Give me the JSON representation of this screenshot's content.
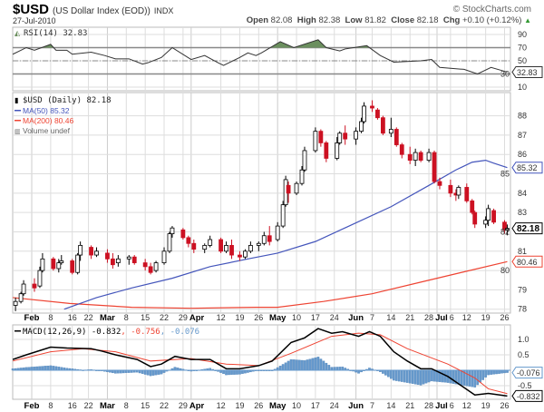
{
  "header": {
    "symbol": "$USD",
    "name": "(US Dollar Index (EOD))",
    "exchange": "INDX",
    "date": "27-Jul-2010",
    "brand": "© StockCharts.com",
    "open_label": "Open",
    "open": "82.08",
    "high_label": "High",
    "high": "82.38",
    "low_label": "Low",
    "low": "81.82",
    "close_label": "Close",
    "close": "82.18",
    "chg_label": "Chg",
    "chg": "+0.10 (+0.12%)"
  },
  "colors": {
    "up": "#000000",
    "down": "#cc1122",
    "ma50": "#4455bb",
    "ma200": "#ee4433",
    "macd": "#000000",
    "signal": "#ee4433",
    "histogram": "#6699cc",
    "rsi_fill": "#6b8f5e",
    "grid": "#dddddd"
  },
  "chart_data": [
    {
      "type": "line",
      "panel": "rsi",
      "legend": "RSI(14) 32.83",
      "last_label": "32.83",
      "ylim": [
        4.5,
        101
      ],
      "yticks": [
        10,
        30,
        50,
        70,
        90
      ],
      "reference_lines": [
        30,
        50,
        70
      ],
      "points": [
        [
          "2010-01-25",
          60
        ],
        [
          "2010-01-30",
          70
        ],
        [
          "2010-02-02",
          66
        ],
        [
          "2010-02-08",
          75
        ],
        [
          "2010-02-10",
          66
        ],
        [
          "2010-02-14",
          66
        ],
        [
          "2010-02-16",
          60
        ],
        [
          "2010-02-23",
          63
        ],
        [
          "2010-02-28",
          58
        ],
        [
          "2010-03-04",
          53
        ],
        [
          "2010-03-09",
          53
        ],
        [
          "2010-03-14",
          45
        ],
        [
          "2010-03-16",
          47
        ],
        [
          "2010-03-21",
          55
        ],
        [
          "2010-03-25",
          70
        ],
        [
          "2010-04-01",
          52
        ],
        [
          "2010-04-06",
          58
        ],
        [
          "2010-04-11",
          47
        ],
        [
          "2010-04-13",
          43
        ],
        [
          "2010-04-19",
          55
        ],
        [
          "2010-04-22",
          62
        ],
        [
          "2010-04-25",
          58
        ],
        [
          "2010-04-27",
          62
        ],
        [
          "2010-05-04",
          79
        ],
        [
          "2010-05-09",
          70
        ],
        [
          "2010-05-18",
          82
        ],
        [
          "2010-05-21",
          70
        ],
        [
          "2010-05-26",
          65
        ],
        [
          "2010-05-28",
          68
        ],
        [
          "2010-06-05",
          73
        ],
        [
          "2010-06-10",
          58
        ],
        [
          "2010-06-15",
          48
        ],
        [
          "2010-06-25",
          50
        ],
        [
          "2010-06-29",
          52
        ],
        [
          "2010-07-02",
          40
        ],
        [
          "2010-07-11",
          37
        ],
        [
          "2010-07-16",
          30
        ],
        [
          "2010-07-21",
          40
        ],
        [
          "2010-07-27",
          32.83
        ]
      ]
    },
    {
      "type": "candlestick",
      "panel": "price",
      "legend": {
        "main": "$USD (Daily) 82.18",
        "ma50": "MA(50) 85.32",
        "ma200": "MA(200) 80.46",
        "volume": "Volume undef"
      },
      "last_labels": {
        "close": "82.18",
        "ma50": "85.32",
        "ma200": "80.46"
      },
      "ylim": [
        77.8,
        89.2
      ],
      "yticks": [
        78,
        79,
        80,
        81,
        82,
        83,
        84,
        85,
        86,
        87,
        88
      ],
      "xlim": [
        "2010-01-25",
        "2010-07-28"
      ],
      "ohlc": [
        [
          "2010-01-26",
          78.2,
          78.6,
          77.9,
          78.4
        ],
        [
          "2010-01-28",
          78.4,
          78.9,
          78.3,
          78.8
        ],
        [
          "2010-01-29",
          78.8,
          79.5,
          78.7,
          79.3
        ],
        [
          "2010-02-02",
          79.3,
          79.6,
          78.9,
          79.1
        ],
        [
          "2010-02-04",
          79.2,
          80.2,
          79.1,
          80.0
        ],
        [
          "2010-02-05",
          80.0,
          80.9,
          79.9,
          80.6
        ],
        [
          "2010-02-09",
          80.6,
          80.7,
          80.0,
          80.1
        ],
        [
          "2010-02-11",
          80.1,
          80.6,
          79.9,
          80.4
        ],
        [
          "2010-02-12",
          80.4,
          80.8,
          80.3,
          80.5
        ],
        [
          "2010-02-16",
          80.5,
          80.6,
          79.8,
          79.9
        ],
        [
          "2010-02-18",
          79.9,
          80.9,
          79.8,
          80.8
        ],
        [
          "2010-02-19",
          80.8,
          81.5,
          80.5,
          81.3
        ],
        [
          "2010-02-23",
          81.2,
          81.3,
          80.6,
          80.8
        ],
        [
          "2010-02-25",
          80.8,
          81.2,
          80.7,
          81.0
        ],
        [
          "2010-03-01",
          80.9,
          81.1,
          80.4,
          80.6
        ],
        [
          "2010-03-03",
          80.6,
          80.9,
          80.1,
          80.3
        ],
        [
          "2010-03-05",
          80.4,
          80.8,
          80.2,
          80.6
        ],
        [
          "2010-03-09",
          80.6,
          80.8,
          80.3,
          80.7
        ],
        [
          "2010-03-11",
          80.7,
          80.8,
          80.3,
          80.4
        ],
        [
          "2010-03-15",
          80.4,
          80.6,
          80.0,
          80.2
        ],
        [
          "2010-03-17",
          80.2,
          80.4,
          79.8,
          79.9
        ],
        [
          "2010-03-19",
          80.0,
          80.5,
          79.9,
          80.4
        ],
        [
          "2010-03-22",
          80.4,
          81.2,
          80.3,
          81.0
        ],
        [
          "2010-03-24",
          81.0,
          82.0,
          80.9,
          81.9
        ],
        [
          "2010-03-25",
          81.9,
          82.3,
          81.7,
          82.2
        ],
        [
          "2010-03-29",
          82.1,
          82.2,
          81.6,
          81.7
        ],
        [
          "2010-03-31",
          81.7,
          81.8,
          81.2,
          81.4
        ],
        [
          "2010-04-02",
          81.4,
          81.6,
          80.9,
          81.1
        ],
        [
          "2010-04-06",
          81.1,
          81.4,
          80.9,
          81.3
        ],
        [
          "2010-04-08",
          81.3,
          81.8,
          81.2,
          81.6
        ],
        [
          "2010-04-12",
          81.6,
          81.7,
          80.9,
          81.0
        ],
        [
          "2010-04-14",
          81.0,
          81.5,
          80.9,
          81.3
        ],
        [
          "2010-04-16",
          81.3,
          81.6,
          80.6,
          80.8
        ],
        [
          "2010-04-19",
          80.8,
          81.0,
          80.5,
          80.7
        ],
        [
          "2010-04-21",
          80.7,
          81.1,
          80.6,
          81.0
        ],
        [
          "2010-04-23",
          81.0,
          81.5,
          80.9,
          81.3
        ],
        [
          "2010-04-26",
          81.3,
          81.5,
          81.0,
          81.4
        ],
        [
          "2010-04-28",
          81.4,
          82.0,
          81.3,
          81.8
        ],
        [
          "2010-04-30",
          81.8,
          82.3,
          81.3,
          81.5
        ],
        [
          "2010-05-03",
          81.6,
          82.5,
          81.5,
          82.3
        ],
        [
          "2010-05-05",
          82.3,
          83.6,
          82.2,
          83.4
        ],
        [
          "2010-05-06",
          83.4,
          84.9,
          83.3,
          84.7
        ],
        [
          "2010-05-07",
          84.4,
          84.6,
          83.5,
          84.0
        ],
        [
          "2010-05-10",
          84.0,
          84.6,
          83.9,
          84.5
        ],
        [
          "2010-05-12",
          84.5,
          85.4,
          84.4,
          85.2
        ],
        [
          "2010-05-13",
          85.2,
          86.4,
          85.1,
          86.2
        ],
        [
          "2010-05-17",
          86.2,
          87.4,
          86.1,
          87.2
        ],
        [
          "2010-05-19",
          87.2,
          87.3,
          86.4,
          86.6
        ],
        [
          "2010-05-21",
          86.6,
          86.7,
          85.6,
          85.8
        ],
        [
          "2010-05-25",
          85.8,
          86.9,
          85.7,
          86.6
        ],
        [
          "2010-05-26",
          86.6,
          87.2,
          86.5,
          87.1
        ],
        [
          "2010-05-28",
          87.1,
          87.5,
          86.5,
          86.8
        ],
        [
          "2010-06-01",
          86.8,
          87.4,
          86.5,
          87.2
        ],
        [
          "2010-06-03",
          87.2,
          87.9,
          87.1,
          87.7
        ],
        [
          "2010-06-04",
          87.7,
          88.7,
          87.6,
          88.5
        ],
        [
          "2010-06-07",
          88.5,
          88.8,
          88.2,
          88.4
        ],
        [
          "2010-06-09",
          88.3,
          88.4,
          87.8,
          87.9
        ],
        [
          "2010-06-11",
          87.9,
          88.0,
          87.0,
          87.1
        ],
        [
          "2010-06-14",
          87.1,
          87.9,
          86.9,
          87.3
        ],
        [
          "2010-06-16",
          87.3,
          87.4,
          86.4,
          86.5
        ],
        [
          "2010-06-18",
          86.5,
          86.6,
          85.8,
          86.0
        ],
        [
          "2010-06-21",
          86.0,
          86.4,
          85.5,
          85.7
        ],
        [
          "2010-06-23",
          85.7,
          86.3,
          85.4,
          86.1
        ],
        [
          "2010-06-25",
          86.1,
          86.2,
          85.6,
          85.7
        ],
        [
          "2010-06-28",
          85.7,
          86.3,
          85.6,
          86.1
        ],
        [
          "2010-06-30",
          86.1,
          86.2,
          84.5,
          84.6
        ],
        [
          "2010-07-02",
          84.6,
          84.8,
          84.2,
          84.4
        ],
        [
          "2010-07-06",
          84.4,
          84.7,
          83.8,
          84.0
        ],
        [
          "2010-07-08",
          84.0,
          84.2,
          83.6,
          83.9
        ],
        [
          "2010-07-09",
          83.9,
          84.4,
          83.7,
          84.3
        ],
        [
          "2010-07-12",
          84.3,
          84.5,
          83.5,
          83.6
        ],
        [
          "2010-07-14",
          83.6,
          83.7,
          82.9,
          83.0
        ],
        [
          "2010-07-15",
          83.0,
          83.1,
          82.2,
          82.4
        ],
        [
          "2010-07-19",
          82.4,
          82.8,
          82.2,
          82.6
        ],
        [
          "2010-07-20",
          82.6,
          83.4,
          82.3,
          83.2
        ],
        [
          "2010-07-22",
          83.1,
          83.2,
          82.4,
          82.5
        ],
        [
          "2010-07-26",
          82.5,
          82.6,
          81.9,
          82.1
        ],
        [
          "2010-07-27",
          82.08,
          82.38,
          81.82,
          82.18
        ]
      ],
      "ma50": [
        [
          "2010-02-13",
          78.0
        ],
        [
          "2010-02-25",
          78.6
        ],
        [
          "2010-03-10",
          79.1
        ],
        [
          "2010-03-25",
          79.6
        ],
        [
          "2010-04-08",
          80.2
        ],
        [
          "2010-04-22",
          80.6
        ],
        [
          "2010-05-03",
          80.9
        ],
        [
          "2010-05-17",
          81.5
        ],
        [
          "2010-05-31",
          82.4
        ],
        [
          "2010-06-14",
          83.3
        ],
        [
          "2010-06-28",
          84.4
        ],
        [
          "2010-07-08",
          85.2
        ],
        [
          "2010-07-14",
          85.6
        ],
        [
          "2010-07-19",
          85.7
        ],
        [
          "2010-07-22",
          85.55
        ],
        [
          "2010-07-27",
          85.32
        ]
      ],
      "ma200": [
        [
          "2010-01-25",
          78.6
        ],
        [
          "2010-02-15",
          78.3
        ],
        [
          "2010-03-10",
          78.1
        ],
        [
          "2010-04-01",
          78.05
        ],
        [
          "2010-04-25",
          78.1
        ],
        [
          "2010-05-03",
          78.1
        ],
        [
          "2010-05-20",
          78.4
        ],
        [
          "2010-06-07",
          78.8
        ],
        [
          "2010-06-25",
          79.4
        ],
        [
          "2010-07-10",
          79.9
        ],
        [
          "2010-07-27",
          80.46
        ]
      ]
    },
    {
      "type": "line",
      "panel": "macd",
      "legend": {
        "main": "MACD(12,26,9) -0.832",
        "signal": ", -0.756",
        "histogram": ", -0.076"
      },
      "last_labels": {
        "macd": "-0.832",
        "histogram": "-0.076"
      },
      "ylim": [
        -0.94,
        1.47
      ],
      "yticks": [
        {
          "v": 1.0,
          "t": "1.0"
        },
        {
          "v": 0.5,
          "t": "0.5"
        },
        {
          "v": -0.5,
          "t": "-0.5"
        }
      ],
      "macd": [
        [
          "2010-01-25",
          0.35
        ],
        [
          "2010-01-30",
          0.5
        ],
        [
          "2010-02-08",
          0.75
        ],
        [
          "2010-02-14",
          0.72
        ],
        [
          "2010-02-23",
          0.7
        ],
        [
          "2010-02-27",
          0.62
        ],
        [
          "2010-03-04",
          0.5
        ],
        [
          "2010-03-12",
          0.35
        ],
        [
          "2010-03-17",
          0.12
        ],
        [
          "2010-03-21",
          0.2
        ],
        [
          "2010-03-26",
          0.45
        ],
        [
          "2010-04-01",
          0.35
        ],
        [
          "2010-04-08",
          0.35
        ],
        [
          "2010-04-14",
          0.05
        ],
        [
          "2010-04-19",
          0.05
        ],
        [
          "2010-04-26",
          0.15
        ],
        [
          "2010-05-01",
          0.3
        ],
        [
          "2010-05-08",
          0.9
        ],
        [
          "2010-05-13",
          1.05
        ],
        [
          "2010-05-18",
          1.35
        ],
        [
          "2010-05-23",
          1.2
        ],
        [
          "2010-05-27",
          1.25
        ],
        [
          "2010-06-02",
          1.1
        ],
        [
          "2010-06-06",
          1.25
        ],
        [
          "2010-06-10",
          1.1
        ],
        [
          "2010-06-15",
          0.6
        ],
        [
          "2010-06-20",
          0.3
        ],
        [
          "2010-06-25",
          0.05
        ],
        [
          "2010-06-29",
          0.05
        ],
        [
          "2010-07-05",
          -0.2
        ],
        [
          "2010-07-10",
          -0.5
        ],
        [
          "2010-07-15",
          -0.8
        ],
        [
          "2010-07-20",
          -0.75
        ],
        [
          "2010-07-27",
          -0.832
        ]
      ],
      "signal": [
        [
          "2010-01-25",
          0.3
        ],
        [
          "2010-02-08",
          0.6
        ],
        [
          "2010-02-20",
          0.7
        ],
        [
          "2010-03-04",
          0.6
        ],
        [
          "2010-03-17",
          0.3
        ],
        [
          "2010-04-01",
          0.38
        ],
        [
          "2010-04-14",
          0.2
        ],
        [
          "2010-04-26",
          0.15
        ],
        [
          "2010-05-08",
          0.55
        ],
        [
          "2010-05-23",
          1.1
        ],
        [
          "2010-06-02",
          1.2
        ],
        [
          "2010-06-10",
          1.15
        ],
        [
          "2010-06-20",
          0.7
        ],
        [
          "2010-07-05",
          0.2
        ],
        [
          "2010-07-15",
          -0.25
        ],
        [
          "2010-07-20",
          -0.6
        ],
        [
          "2010-07-27",
          -0.756
        ]
      ]
    }
  ],
  "xaxis": {
    "ticks": [
      [
        "2010-02-01",
        "Feb",
        true
      ],
      [
        "2010-02-08",
        "8",
        false
      ],
      [
        "2010-02-16",
        "16",
        false
      ],
      [
        "2010-02-22",
        "22",
        false
      ],
      [
        "2010-03-01",
        "Mar",
        true
      ],
      [
        "2010-03-08",
        "8",
        false
      ],
      [
        "2010-03-15",
        "15",
        false
      ],
      [
        "2010-03-22",
        "22",
        false
      ],
      [
        "2010-03-29",
        "29",
        false
      ],
      [
        "2010-04-01",
        "Apr",
        true
      ],
      [
        "2010-04-12",
        "12",
        false
      ],
      [
        "2010-04-19",
        "19",
        false
      ],
      [
        "2010-04-26",
        "26",
        false
      ],
      [
        "2010-05-03",
        "May",
        true
      ],
      [
        "2010-05-10",
        "10",
        false
      ],
      [
        "2010-05-17",
        "17",
        false
      ],
      [
        "2010-05-24",
        "24",
        false
      ],
      [
        "2010-06-01",
        "Jun",
        true
      ],
      [
        "2010-06-07",
        "7",
        false
      ],
      [
        "2010-06-14",
        "14",
        false
      ],
      [
        "2010-06-21",
        "21",
        false
      ],
      [
        "2010-06-28",
        "28",
        false
      ],
      [
        "2010-07-01",
        "Jul",
        true
      ],
      [
        "2010-07-06",
        "6",
        false
      ],
      [
        "2010-07-12",
        "12",
        false
      ],
      [
        "2010-07-19",
        "19",
        false
      ],
      [
        "2010-07-26",
        "26",
        false
      ]
    ]
  }
}
